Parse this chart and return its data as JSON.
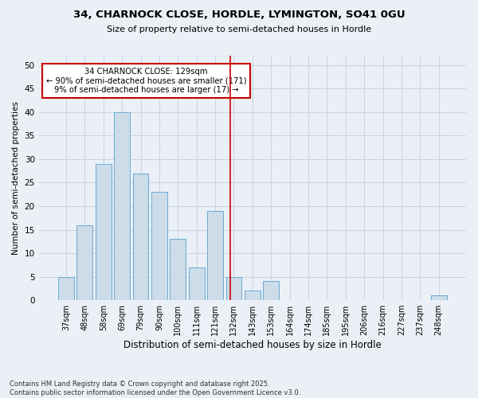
{
  "title1": "34, CHARNOCK CLOSE, HORDLE, LYMINGTON, SO41 0GU",
  "title2": "Size of property relative to semi-detached houses in Hordle",
  "xlabel": "Distribution of semi-detached houses by size in Hordle",
  "ylabel": "Number of semi-detached properties",
  "categories": [
    "37sqm",
    "48sqm",
    "58sqm",
    "69sqm",
    "79sqm",
    "90sqm",
    "100sqm",
    "111sqm",
    "121sqm",
    "132sqm",
    "143sqm",
    "153sqm",
    "164sqm",
    "174sqm",
    "185sqm",
    "195sqm",
    "206sqm",
    "216sqm",
    "227sqm",
    "237sqm",
    "248sqm"
  ],
  "values": [
    5,
    16,
    29,
    40,
    27,
    23,
    13,
    7,
    19,
    5,
    2,
    4,
    0,
    0,
    0,
    0,
    0,
    0,
    0,
    0,
    1
  ],
  "bar_color": "#ccdce8",
  "bar_edge_color": "#6aaad4",
  "grid_color": "#c8d4e0",
  "background_color": "#eaf0f6",
  "redline_x": 8.82,
  "annotation_text": "34 CHARNOCK CLOSE: 129sqm\n← 90% of semi-detached houses are smaller (171)\n9% of semi-detached houses are larger (17) →",
  "annotation_box_color": "#ffffff",
  "annotation_edge_color": "#cc0000",
  "footnote": "Contains HM Land Registry data © Crown copyright and database right 2025.\nContains public sector information licensed under the Open Government Licence v3.0.",
  "ylim": [
    0,
    52
  ],
  "yticks": [
    0,
    5,
    10,
    15,
    20,
    25,
    30,
    35,
    40,
    45,
    50
  ]
}
